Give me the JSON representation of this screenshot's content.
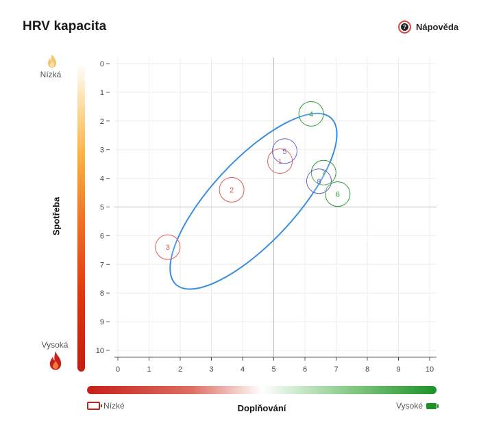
{
  "header": {
    "title": "HRV kapacita",
    "help_label": "Nápověda"
  },
  "y_axis": {
    "title": "Spotřeba",
    "low_label": "Nízká",
    "high_label": "Vysoká"
  },
  "x_axis": {
    "title": "Doplňování",
    "low_label": "Nízké",
    "high_label": "Vysoké"
  },
  "colors": {
    "blue": "#3a8ee0",
    "red": "#e05a50",
    "green": "#2e9a3a",
    "purple": "#6264c9",
    "crosshair": "#b8b8b8",
    "grid": "#ececec"
  },
  "chart_data": {
    "type": "scatter",
    "title": "HRV kapacita",
    "xlabel": "Doplňování",
    "ylabel": "Spotřeba",
    "xlim": [
      0,
      10
    ],
    "ylim": [
      0,
      10
    ],
    "y_inverted": true,
    "x_ticks": [
      "0",
      "1",
      "2",
      "3",
      "4",
      "5",
      "6",
      "7",
      "8",
      "9",
      "10"
    ],
    "y_ticks": [
      "0",
      "1",
      "2",
      "3",
      "4",
      "5",
      "6",
      "7",
      "8",
      "9",
      "10"
    ],
    "crosshair": {
      "x": 5,
      "y": 5
    },
    "points": [
      {
        "label": "1",
        "x": 5.2,
        "y": 3.4,
        "color": "red"
      },
      {
        "label": "2",
        "x": 3.65,
        "y": 4.4,
        "color": "red"
      },
      {
        "label": "3",
        "x": 1.6,
        "y": 6.4,
        "color": "red"
      },
      {
        "label": "4",
        "x": 6.2,
        "y": 1.75,
        "color": "green"
      },
      {
        "label": "5",
        "x": 5.35,
        "y": 3.05,
        "color": "purple"
      },
      {
        "label": "6",
        "x": 7.05,
        "y": 4.55,
        "color": "green"
      },
      {
        "label": "7",
        "x": 6.6,
        "y": 3.8,
        "color": "green"
      },
      {
        "label": "8",
        "x": 6.45,
        "y": 4.1,
        "color": "purple"
      }
    ],
    "ellipse": {
      "cx": 4.35,
      "cy": 4.8,
      "rx": 3.65,
      "ry": 1.45,
      "angle_deg": -47,
      "color": "blue"
    }
  }
}
